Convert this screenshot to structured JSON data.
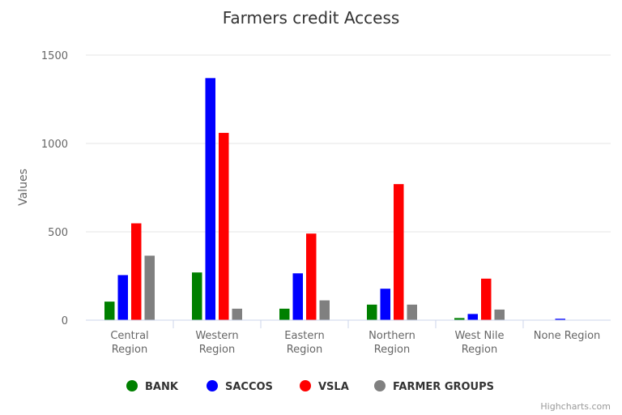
{
  "chart_data": {
    "type": "bar",
    "title": "Farmers credit Access",
    "ylabel": "Values",
    "xlabel": "",
    "ylim": [
      0,
      1500
    ],
    "yticks": [
      0,
      500,
      1000,
      1500
    ],
    "grid": true,
    "legend_position": "bottom-center",
    "categories": [
      [
        "Central",
        "Region"
      ],
      [
        "Western",
        "Region"
      ],
      [
        "Eastern",
        "Region"
      ],
      [
        "Northern",
        "Region"
      ],
      [
        "West Nile",
        "Region"
      ],
      [
        "None Region"
      ]
    ],
    "series": [
      {
        "name": "BANK",
        "color": "#008000",
        "values": [
          105,
          270,
          65,
          88,
          12,
          0
        ]
      },
      {
        "name": "SACCOS",
        "color": "#0000ff",
        "values": [
          255,
          1370,
          265,
          178,
          35,
          8
        ]
      },
      {
        "name": "VSLA",
        "color": "#ff0000",
        "values": [
          548,
          1060,
          490,
          770,
          235,
          0
        ]
      },
      {
        "name": "FARMER GROUPS",
        "color": "#808080",
        "values": [
          365,
          65,
          112,
          88,
          60,
          0
        ]
      }
    ]
  },
  "credits": "Highcharts.com"
}
